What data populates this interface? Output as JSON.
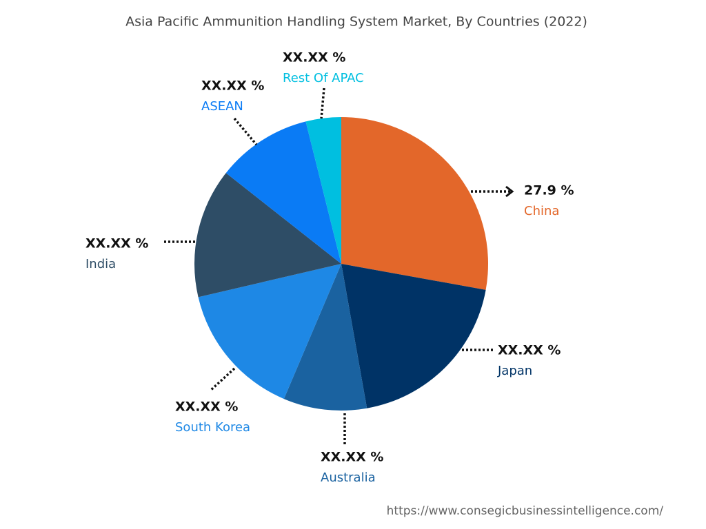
{
  "chart_data": {
    "type": "pie",
    "title": "Asia Pacific Ammunition Handling System Market, By Countries (2022)",
    "categories": [
      "China",
      "Japan",
      "Australia",
      "South Korea",
      "India",
      "ASEAN",
      "Rest Of APAC"
    ],
    "values": [
      27.9,
      19.4,
      9.2,
      15.0,
      14.3,
      10.5,
      3.9
    ],
    "value_labels": [
      "27.9 %",
      "XX.XX %",
      "XX.XX %",
      "XX.XX %",
      "XX.XX %",
      "XX.XX %",
      "XX.XX %"
    ],
    "colors": [
      "#e3672a",
      "#003366",
      "#1a62a0",
      "#1e88e5",
      "#2e4d66",
      "#0a7bf5",
      "#00bfe0"
    ],
    "source": "https://www.consegicbusinessintelligence.com/"
  }
}
